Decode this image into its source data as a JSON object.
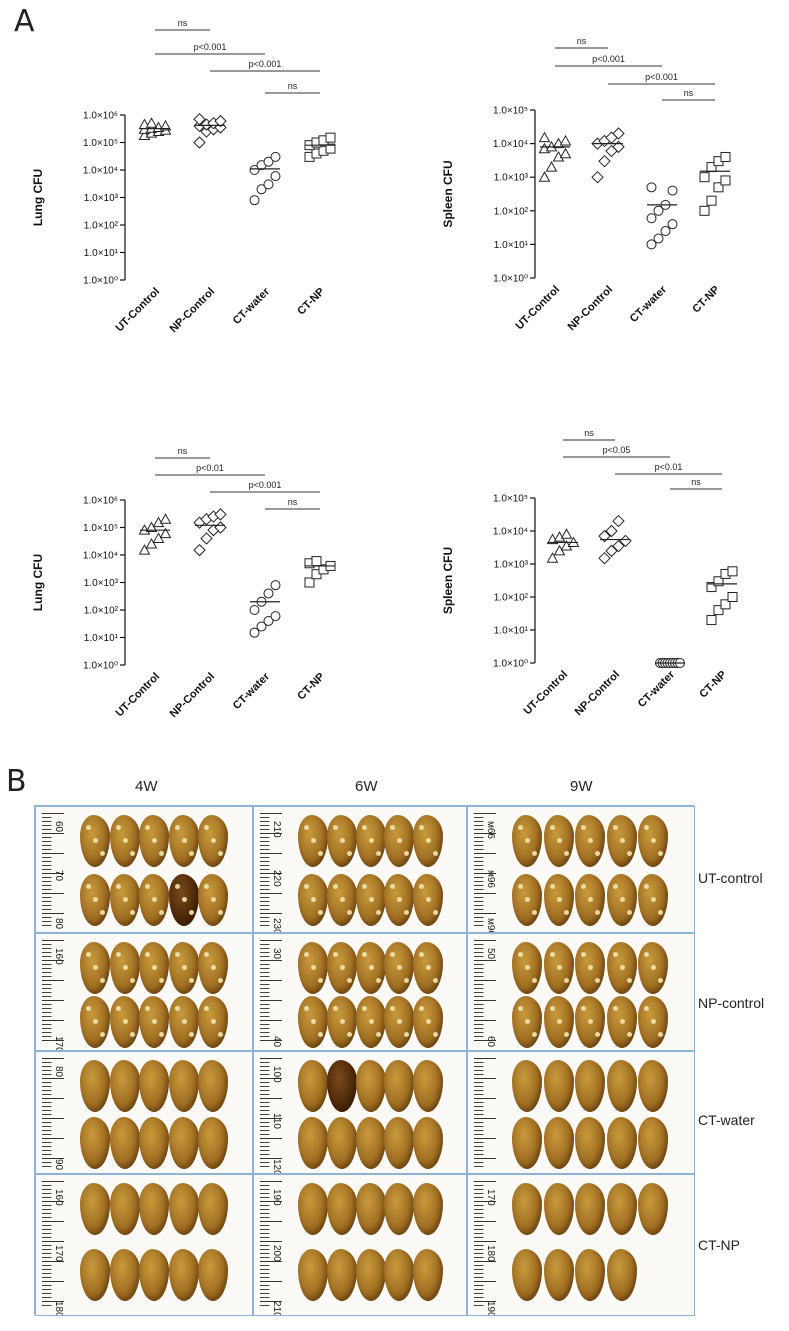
{
  "panels": {
    "a": "A",
    "b": "B"
  },
  "chart_data": [
    {
      "type": "scatter",
      "ylabel": "Lung CFU",
      "yscale": "log",
      "ylim": [
        1,
        1000000
      ],
      "ytick_labels": [
        "1.0×10⁰",
        "1.0×10¹",
        "1.0×10²",
        "1.0×10³",
        "1.0×10⁴",
        "1.0×10⁵",
        "1.0×10⁶"
      ],
      "categories": [
        "UT-Control",
        "NP-Control",
        "CT-water",
        "CT-NP"
      ],
      "markers": [
        "triangle",
        "diamond",
        "circle",
        "square"
      ],
      "points": [
        [
          180000,
          220000,
          250000,
          280000,
          300000,
          330000,
          350000,
          400000,
          450000,
          500000
        ],
        [
          100000,
          250000,
          300000,
          350000,
          400000,
          450000,
          500000,
          600000,
          700000
        ],
        [
          800,
          2000,
          3000,
          6000,
          10000,
          15000,
          20000,
          30000
        ],
        [
          30000,
          40000,
          50000,
          60000,
          80000,
          100000,
          120000,
          150000
        ]
      ],
      "means": [
        320000,
        420000,
        11000,
        80000
      ],
      "comparisons": [
        {
          "from": 0,
          "to": 1,
          "label": "ns"
        },
        {
          "from": 0,
          "to": 2,
          "label": "p<0.001"
        },
        {
          "from": 1,
          "to": 3,
          "label": "p<0.001"
        },
        {
          "from": 2,
          "to": 3,
          "label": "ns"
        }
      ]
    },
    {
      "type": "scatter",
      "ylabel": "Spleen CFU",
      "yscale": "log",
      "ylim": [
        1,
        100000
      ],
      "ytick_labels": [
        "1.0×10⁰",
        "1.0×10¹",
        "1.0×10²",
        "1.0×10³",
        "1.0×10⁴",
        "1.0×10⁵"
      ],
      "categories": [
        "UT-Control",
        "NP-Control",
        "CT-water",
        "CT-NP"
      ],
      "markers": [
        "triangle",
        "diamond",
        "circle",
        "square"
      ],
      "points": [
        [
          1000,
          2000,
          4000,
          5000,
          7000,
          8000,
          10000,
          12000,
          15000
        ],
        [
          1000,
          3000,
          6000,
          8000,
          10000,
          12000,
          15000,
          20000
        ],
        [
          10,
          15,
          25,
          40,
          60,
          100,
          150,
          400,
          500
        ],
        [
          100,
          200,
          500,
          800,
          1000,
          2000,
          3000,
          4000
        ]
      ],
      "means": [
        8000,
        10000,
        150,
        1500
      ],
      "comparisons": [
        {
          "from": 0,
          "to": 1,
          "label": "ns"
        },
        {
          "from": 0,
          "to": 2,
          "label": "p<0.001"
        },
        {
          "from": 1,
          "to": 3,
          "label": "p<0.001"
        },
        {
          "from": 2,
          "to": 3,
          "label": "ns"
        }
      ]
    },
    {
      "type": "scatter",
      "ylabel": "Lung CFU",
      "yscale": "log",
      "ylim": [
        1,
        1000000
      ],
      "ytick_labels": [
        "1.0×10⁰",
        "1.0×10¹",
        "1.0×10²",
        "1.0×10³",
        "1.0×10⁴",
        "1.0×10⁵",
        "1.0×10⁶"
      ],
      "categories": [
        "UT-Control",
        "NP-Control",
        "CT-water",
        "CT-NP"
      ],
      "markers": [
        "triangle",
        "diamond",
        "circle",
        "square"
      ],
      "points": [
        [
          15000,
          25000,
          40000,
          60000,
          80000,
          100000,
          150000,
          200000
        ],
        [
          15000,
          40000,
          80000,
          100000,
          150000,
          200000,
          250000,
          300000
        ],
        [
          15,
          25,
          40,
          60,
          100,
          200,
          400,
          800
        ],
        [
          1000,
          2000,
          3000,
          4000,
          5000,
          6000
        ]
      ],
      "means": [
        80000,
        120000,
        200,
        4000
      ],
      "comparisons": [
        {
          "from": 0,
          "to": 1,
          "label": "ns"
        },
        {
          "from": 0,
          "to": 2,
          "label": "p<0.01"
        },
        {
          "from": 1,
          "to": 3,
          "label": "p<0.001"
        },
        {
          "from": 2,
          "to": 3,
          "label": "ns"
        }
      ]
    },
    {
      "type": "scatter",
      "ylabel": "Spleen CFU",
      "yscale": "log",
      "ylim": [
        1,
        100000
      ],
      "ytick_labels": [
        "1.0×10⁰",
        "1.0×10¹",
        "1.0×10²",
        "1.0×10³",
        "1.0×10⁴",
        "1.0×10⁵"
      ],
      "categories": [
        "UT-Control",
        "NP-Control",
        "CT-water",
        "CT-NP"
      ],
      "markers": [
        "triangle",
        "diamond",
        "circle",
        "square"
      ],
      "points": [
        [
          1500,
          2500,
          3500,
          4500,
          5500,
          6500,
          8000
        ],
        [
          1500,
          2500,
          3500,
          5000,
          7000,
          10000,
          20000
        ],
        [
          1,
          1,
          1,
          1,
          1,
          1,
          1,
          1,
          1
        ],
        [
          20,
          40,
          60,
          100,
          200,
          300,
          500,
          600
        ]
      ],
      "means": [
        4500,
        5500,
        1,
        250
      ],
      "comparisons": [
        {
          "from": 0,
          "to": 1,
          "label": "ns"
        },
        {
          "from": 0,
          "to": 2,
          "label": "p<0.05"
        },
        {
          "from": 1,
          "to": 3,
          "label": "p<0.01"
        },
        {
          "from": 2,
          "to": 3,
          "label": "ns"
        }
      ]
    }
  ],
  "photo_grid": {
    "columns": [
      "4W",
      "6W",
      "9W"
    ],
    "rows": [
      "UT-control",
      "NP-control",
      "CT-water",
      "CT-NP"
    ],
    "ruler_numbers": [
      [
        [
          "60",
          "70",
          "80"
        ],
        [
          "210",
          "220",
          "230"
        ],
        [
          "ᴍ66",
          "ᴍ96",
          "ᴍ96"
        ]
      ],
      [
        [
          "160",
          "170"
        ],
        [
          "30",
          "40"
        ],
        [
          "50",
          "60"
        ]
      ],
      [
        [
          "80",
          "90"
        ],
        [
          "100",
          "110",
          "120"
        ]
      ],
      [
        [
          "160",
          "170",
          "180"
        ],
        [
          "190",
          "200",
          "210"
        ],
        [
          "170",
          "180",
          "190"
        ]
      ]
    ]
  }
}
